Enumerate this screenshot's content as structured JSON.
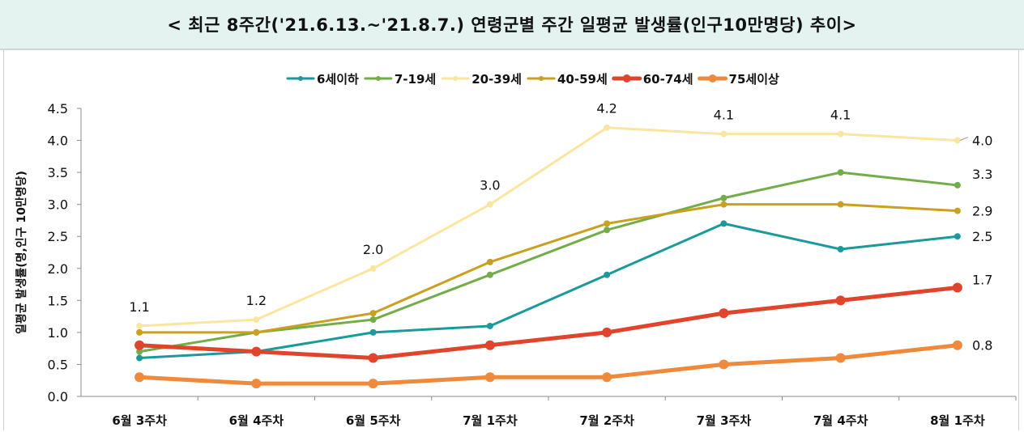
{
  "title": "< 최근 8주간('21.6.13.~'21.8.7.) 연령군별 주간 일평균 발생률(인구10만명당) 추이>",
  "chart_data": {
    "type": "line",
    "title": "< 최근 8주간('21.6.13.~'21.8.7.) 연령군별 주간 일평균 발생률(인구10만명당) 추이>",
    "xlabel": "",
    "ylabel": "일평균 발생률(명,인구 10만명당)",
    "ylim": [
      0,
      4.5
    ],
    "yticks": [
      "0.0",
      "0.5",
      "1.0",
      "1.5",
      "2.0",
      "2.5",
      "3.0",
      "3.5",
      "4.0",
      "4.5"
    ],
    "grid": false,
    "legend": "top-center",
    "categories": [
      "6월 3주차",
      "6월 4주차",
      "6월 5주차",
      "7월 1주차",
      "7월 2주차",
      "7월 3주차",
      "7월 4주차",
      "8월 1주차"
    ],
    "series": [
      {
        "name": "6세이하",
        "color": "#1a9a9a",
        "width": 3,
        "marker": 4,
        "values": [
          0.6,
          0.7,
          1.0,
          1.1,
          1.9,
          2.7,
          2.3,
          2.5
        ]
      },
      {
        "name": "7-19세",
        "color": "#72ad4a",
        "width": 3,
        "marker": 4,
        "values": [
          0.7,
          1.0,
          1.2,
          1.9,
          2.6,
          3.1,
          3.5,
          3.3
        ]
      },
      {
        "name": "20-39세",
        "color": "#fae6a0",
        "width": 3,
        "marker": 4,
        "values": [
          1.1,
          1.2,
          2.0,
          3.0,
          4.2,
          4.1,
          4.1,
          4.0
        ]
      },
      {
        "name": "40-59세",
        "color": "#c9a020",
        "width": 3,
        "marker": 4,
        "values": [
          1.0,
          1.0,
          1.3,
          2.1,
          2.7,
          3.0,
          3.0,
          2.9
        ]
      },
      {
        "name": "60-74세",
        "color": "#e0452c",
        "width": 5,
        "marker": 6,
        "values": [
          0.8,
          0.7,
          0.6,
          0.8,
          1.0,
          1.3,
          1.5,
          1.7
        ]
      },
      {
        "name": "75세이상",
        "color": "#ef8a3c",
        "width": 5,
        "marker": 6,
        "values": [
          0.3,
          0.2,
          0.2,
          0.3,
          0.3,
          0.5,
          0.6,
          0.8
        ]
      }
    ],
    "annotations": {
      "top_series": [
        "1.1",
        "1.2",
        "2.0",
        "3.0",
        "4.2",
        "4.1",
        "4.1",
        "4.0"
      ],
      "last_point": [
        "4.0",
        "3.3",
        "2.9",
        "2.5",
        "1.7",
        "0.8"
      ]
    }
  }
}
